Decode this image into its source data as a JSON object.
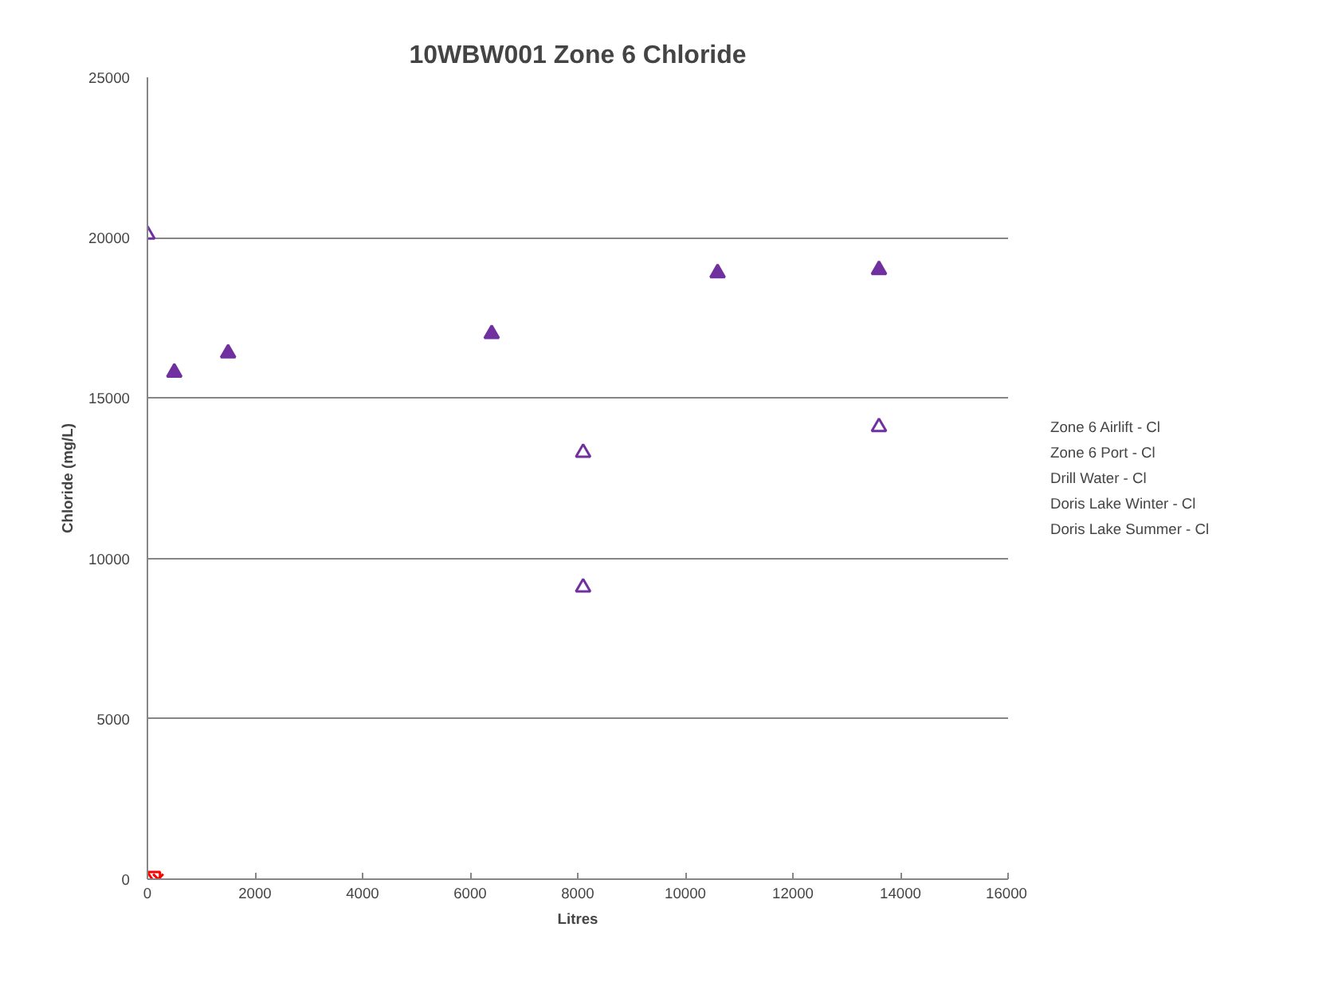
{
  "chart_data": {
    "type": "scatter",
    "title": "10WBW001 Zone 6 Chloride",
    "xlabel": "Litres",
    "ylabel": "Chloride (mg/L)",
    "xlim": [
      0,
      16000
    ],
    "xticks": [
      0,
      2000,
      4000,
      6000,
      8000,
      10000,
      12000,
      14000,
      16000
    ],
    "ylim": [
      0,
      25000
    ],
    "yticks": [
      0,
      5000,
      10000,
      15000,
      20000,
      25000
    ],
    "grid": "y",
    "legend": "right",
    "series": [
      {
        "name": "Zone 6 Airlift - Cl",
        "color": "#7030a0",
        "marker": "triangle",
        "x": [
          500,
          1500,
          6400,
          10600,
          13600
        ],
        "values": [
          15800,
          16400,
          17000,
          18900,
          19000
        ]
      },
      {
        "name": "Zone 6 Port - Cl",
        "color": "#7030a0",
        "marker": "triangle",
        "x": [
          0,
          8100,
          8100,
          13600
        ],
        "values": [
          20100,
          13300,
          9100,
          14100
        ]
      },
      {
        "name": "Drill Water - Cl",
        "color": "#ff0000",
        "marker": "diamond",
        "x": [
          0
        ],
        "values": [
          0
        ]
      },
      {
        "name": "Doris Lake Winter - Cl",
        "color": "#ff0000",
        "marker": "square",
        "x": [
          100
        ],
        "values": [
          0
        ]
      },
      {
        "name": "Doris Lake Summer - Cl",
        "color": "#ff0000",
        "marker": "cross",
        "x": [
          200
        ],
        "values": [
          0
        ]
      }
    ]
  }
}
